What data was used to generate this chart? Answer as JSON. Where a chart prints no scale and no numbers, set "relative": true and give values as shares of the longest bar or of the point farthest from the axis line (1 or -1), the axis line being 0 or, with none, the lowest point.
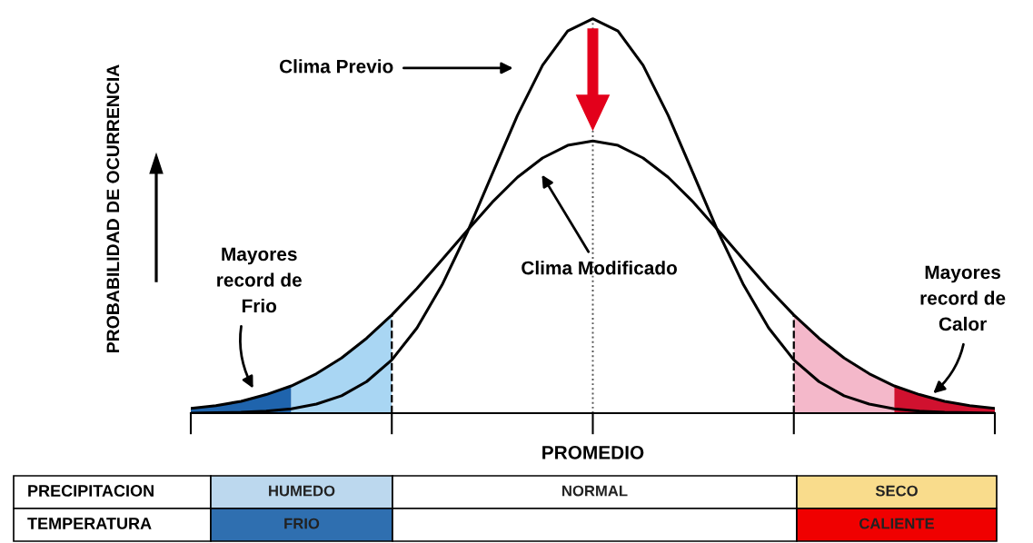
{
  "chart_data": {
    "type": "line",
    "relative": true,
    "xlabel": "PROMEDIO",
    "ylabel": "PROBABILIDAD DE OCURRENCIA",
    "line_style": "solid",
    "categories": [
      null,
      null,
      null,
      null,
      null,
      null,
      null,
      null,
      null,
      null,
      null,
      null,
      null,
      null,
      null,
      null,
      null,
      null,
      null,
      null,
      null,
      null,
      null,
      null,
      null,
      null,
      null,
      null,
      null,
      null,
      null,
      null,
      null
    ],
    "series": [
      {
        "color": "#000000",
        "values": [
          0,
          0.001,
          0.002,
          0.005,
          0.011,
          0.023,
          0.044,
          0.08,
          0.135,
          0.216,
          0.325,
          0.458,
          0.607,
          0.755,
          0.882,
          0.969,
          1,
          0.969,
          0.882,
          0.755,
          0.607,
          0.458,
          0.325,
          0.216,
          0.135,
          0.08,
          0.044,
          0.023,
          0.011,
          0.005,
          0.002,
          0.001,
          0
        ]
      },
      {
        "color": "#000000",
        "values": [
          0.012,
          0.019,
          0.03,
          0.047,
          0.069,
          0.1,
          0.14,
          0.19,
          0.249,
          0.316,
          0.389,
          0.463,
          0.535,
          0.598,
          0.647,
          0.679,
          0.69,
          0.679,
          0.647,
          0.598,
          0.535,
          0.463,
          0.389,
          0.316,
          0.249,
          0.19,
          0.14,
          0.1,
          0.069,
          0.047,
          0.03,
          0.019,
          0.012
        ]
      },
      {
        "type": "area",
        "color": "#1f64ad",
        "values": [
          0.012,
          0.019,
          0.03,
          0.047,
          0.069,
          null,
          null,
          null,
          null,
          null,
          null,
          null,
          null,
          null,
          null,
          null,
          null,
          null,
          null,
          null,
          null,
          null,
          null,
          null,
          null,
          null,
          null,
          null,
          null,
          null,
          null,
          null,
          null
        ]
      },
      {
        "type": "area",
        "color": "#a9d6f3",
        "line_style": "dashed",
        "values": [
          null,
          null,
          null,
          null,
          0.069,
          0.1,
          0.14,
          0.19,
          0.249,
          null,
          null,
          null,
          null,
          null,
          null,
          null,
          null,
          null,
          null,
          null,
          null,
          null,
          null,
          null,
          null,
          null,
          null,
          null,
          null,
          null,
          null,
          null,
          null
        ]
      },
      {
        "type": "area",
        "color": "#f4b8ca",
        "line_style": "dashed",
        "values": [
          null,
          null,
          null,
          null,
          null,
          null,
          null,
          null,
          null,
          null,
          null,
          null,
          null,
          null,
          null,
          null,
          null,
          null,
          null,
          null,
          null,
          null,
          null,
          null,
          0.249,
          0.19,
          0.14,
          0.1,
          0.069,
          null,
          null,
          null,
          null
        ]
      },
      {
        "type": "area",
        "color": "#d0112f",
        "values": [
          null,
          null,
          null,
          null,
          null,
          null,
          null,
          null,
          null,
          null,
          null,
          null,
          null,
          null,
          null,
          null,
          null,
          null,
          null,
          null,
          null,
          null,
          null,
          null,
          null,
          null,
          null,
          null,
          0.069,
          0.047,
          0.03,
          0.019,
          0.012
        ]
      }
    ],
    "annotations": [
      "Clima Previo",
      "Clima Modificado",
      "Mayores\nrecord de\nFrio",
      "Mayores\nrecord de\nCalor",
      "PRECIPITACION",
      "HUMEDO",
      "NORMAL",
      "SECO",
      "TEMPERATURA",
      "FRIO",
      "CALIENTE"
    ]
  }
}
